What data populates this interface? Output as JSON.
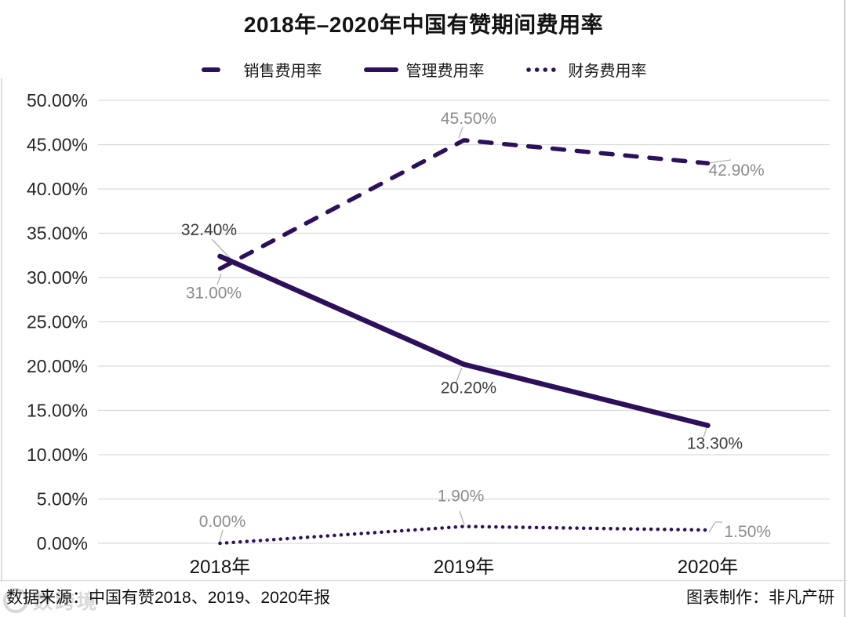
{
  "title": "2018年–2020年中国有赞期间费用率",
  "colors": {
    "line": "#2d105a",
    "grid": "#d9d9d9",
    "divider": "#dcdcdc",
    "leader": "#b3b3b3",
    "axis_text": "#262626",
    "x_axis_text": "#111111",
    "label_gray": "#8c8c8c",
    "label_dark": "#3c3c3c"
  },
  "legend": {
    "items": [
      {
        "label": "销售费用率",
        "marker": "dash-dot-line"
      },
      {
        "label": "管理费用率",
        "marker": "solid-line"
      },
      {
        "label": "财务费用率",
        "marker": "dotted-line"
      }
    ]
  },
  "chart_data": {
    "type": "line",
    "title": "2018年–2020年中国有赞期间费用率",
    "categories": [
      "2018年",
      "2019年",
      "2020年"
    ],
    "series": [
      {
        "name": "销售费用率",
        "style": "dashed",
        "values": [
          31.0,
          45.5,
          42.9
        ],
        "labels": [
          "31.00%",
          "45.50%",
          "42.90%"
        ],
        "label_color": "#8c8c8c"
      },
      {
        "name": "管理费用率",
        "style": "solid",
        "values": [
          32.4,
          20.2,
          13.3
        ],
        "labels": [
          "32.40%",
          "20.20%",
          "13.30%"
        ],
        "label_color": "#3c3c3c"
      },
      {
        "name": "财务费用率",
        "style": "dotted",
        "values": [
          0.0,
          1.9,
          1.5
        ],
        "labels": [
          "0.00%",
          "1.90%",
          "1.50%"
        ],
        "label_color": "#8c8c8c"
      }
    ],
    "ylim": [
      0,
      50
    ],
    "ytick_step": 5,
    "yticks": [
      "0.00%",
      "5.00%",
      "10.00%",
      "15.00%",
      "20.00%",
      "25.00%",
      "30.00%",
      "35.00%",
      "40.00%",
      "45.00%",
      "50.00%"
    ],
    "xlabel": "",
    "ylabel": "",
    "grid": true,
    "legend_position": "top"
  },
  "footer": {
    "source": "数据来源：中国有赞2018、2019、2020年报",
    "credit": "图表制作：非凡产研"
  },
  "watermark": {
    "text": "数跨境"
  }
}
